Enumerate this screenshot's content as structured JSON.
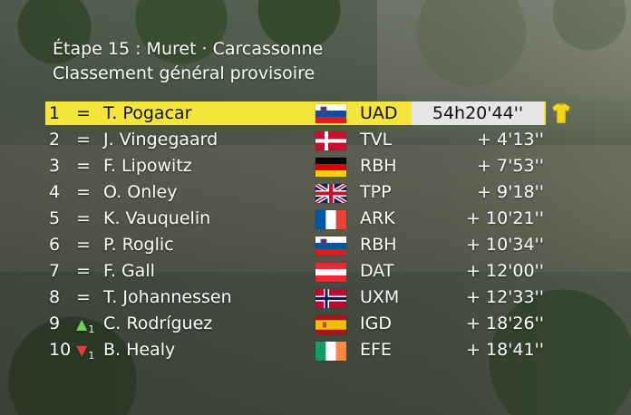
{
  "header": {
    "stage": "Étape 15 : Muret · Carcassonne",
    "classification": "Classement général provisoire"
  },
  "rows": [
    {
      "pos": "1",
      "move": "=",
      "move_num": "",
      "rider": "T. Pogacar",
      "team": "UAD",
      "time": "54h20'44''",
      "flag": "slovenia-flag"
    },
    {
      "pos": "2",
      "move": "=",
      "move_num": "",
      "rider": "J. Vingegaard",
      "team": "TVL",
      "time": "+ 4'13''",
      "flag": "denmark-flag"
    },
    {
      "pos": "3",
      "move": "=",
      "move_num": "",
      "rider": "F. Lipowitz",
      "team": "RBH",
      "time": "+ 7'53''",
      "flag": "germany-flag"
    },
    {
      "pos": "4",
      "move": "=",
      "move_num": "",
      "rider": "O. Onley",
      "team": "TPP",
      "time": "+ 9'18''",
      "flag": "uk-flag"
    },
    {
      "pos": "5",
      "move": "=",
      "move_num": "",
      "rider": "K. Vauquelin",
      "team": "ARK",
      "time": "+ 10'21''",
      "flag": "france-flag"
    },
    {
      "pos": "6",
      "move": "=",
      "move_num": "",
      "rider": "P. Roglic",
      "team": "RBH",
      "time": "+ 10'34''",
      "flag": "slovenia-flag"
    },
    {
      "pos": "7",
      "move": "=",
      "move_num": "",
      "rider": "F. Gall",
      "team": "DAT",
      "time": "+ 12'00''",
      "flag": "austria-flag"
    },
    {
      "pos": "8",
      "move": "=",
      "move_num": "",
      "rider": "T. Johannessen",
      "team": "UXM",
      "time": "+ 12'33''",
      "flag": "norway-flag"
    },
    {
      "pos": "9",
      "move": "▲",
      "move_num": "1",
      "rider": "C. Rodríguez",
      "team": "IGD",
      "time": "+ 18'26''",
      "flag": "spain-flag"
    },
    {
      "pos": "10",
      "move": "▼",
      "move_num": "1",
      "rider": "B. Healy",
      "team": "EFE",
      "time": "+ 18'41''",
      "flag": "ireland-flag"
    }
  ],
  "colors": {
    "leader_bar": "#f5e53b",
    "time_box": "#e5e5e5",
    "up_arrow": "#6bd15b",
    "down_arrow": "#e53b3b"
  },
  "icons": {
    "leader_jersey": "yellow-jersey-icon"
  }
}
